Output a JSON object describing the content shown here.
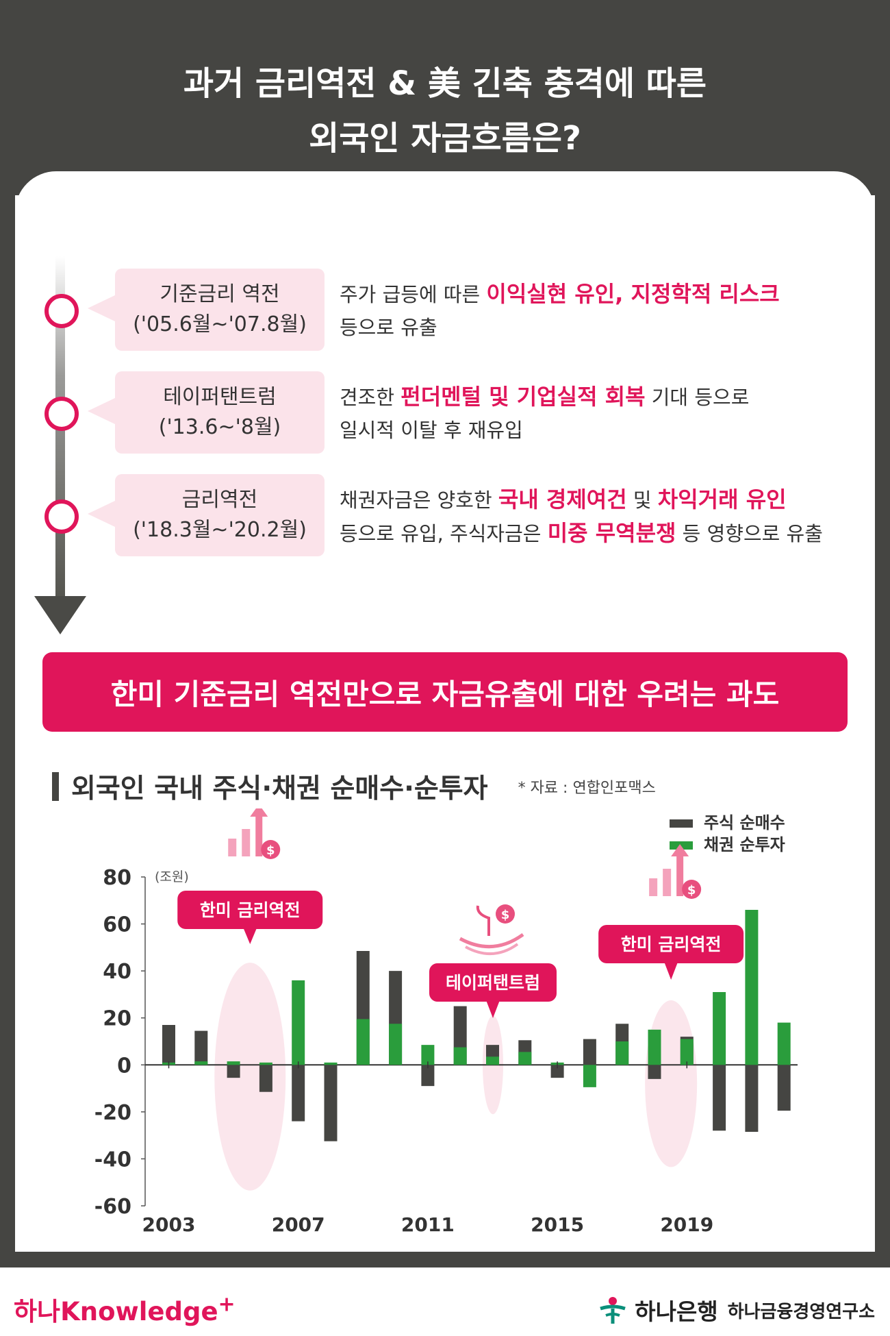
{
  "header": {
    "title_line1": "과거 금리역전 & 美 긴축 충격에 따른",
    "title_line2": "외국인 자금흐름은?"
  },
  "timeline": [
    {
      "period_name": "기준금리 역전",
      "period_range": "('05.6월~'07.8월)",
      "line1": [
        {
          "text": "주가 급등에 따른 ",
          "hl": false
        },
        {
          "text": "이익실현 유인, 지정학적 리스크",
          "hl": true
        }
      ],
      "line2": [
        {
          "text": "등으로 유출",
          "hl": false
        }
      ]
    },
    {
      "period_name": "테이퍼탠트럼",
      "period_range": "('13.6~'8월)",
      "line1": [
        {
          "text": "견조한 ",
          "hl": false
        },
        {
          "text": "펀더멘털 및 기업실적 회복",
          "hl": true
        },
        {
          "text": " 기대 등으로",
          "hl": false
        }
      ],
      "line2": [
        {
          "text": "일시적 이탈 후 재유입",
          "hl": false
        }
      ]
    },
    {
      "period_name": "금리역전",
      "period_range": "('18.3월~'20.2월)",
      "line1": [
        {
          "text": "채권자금은 양호한 ",
          "hl": false
        },
        {
          "text": "국내 경제여건",
          "hl": true
        },
        {
          "text": " 및 ",
          "hl": false
        },
        {
          "text": "차익거래 유인",
          "hl": true
        }
      ],
      "line2": [
        {
          "text": "등으로 유입, 주식자금은 ",
          "hl": false
        },
        {
          "text": "미중 무역분쟁",
          "hl": true
        },
        {
          "text": " 등 영향으로 유출",
          "hl": false
        }
      ]
    }
  ],
  "banner": {
    "text": "한미 기준금리 역전만으로 자금유출에 대한 우려는 과도"
  },
  "chart_section": {
    "title": "외국인 국내 주식·채권 순매수·순투자",
    "source": "* 자료 : 연합인포맥스"
  },
  "chart_data": {
    "type": "bar",
    "x": [
      2003,
      2004,
      2005,
      2006,
      2007,
      2008,
      2009,
      2010,
      2011,
      2012,
      2013,
      2014,
      2015,
      2016,
      2017,
      2018,
      2019,
      2020,
      2021,
      2022
    ],
    "x_tick_labels": [
      "2003",
      "2007",
      "2011",
      "2015",
      "2019"
    ],
    "y_unit_label": "(조원)",
    "ylim": [
      -60,
      80
    ],
    "y_ticks": [
      80,
      60,
      40,
      20,
      0,
      -20,
      -40,
      -60
    ],
    "series": [
      {
        "name": "주식 순매수",
        "color": "#454542",
        "values": [
          17,
          14.5,
          -5.5,
          -11.5,
          -24,
          -32.5,
          48.5,
          40,
          -9,
          25,
          8.5,
          10.5,
          -5.5,
          11,
          17.5,
          -6,
          12,
          -28,
          -28.5,
          -19.5
        ]
      },
      {
        "name": "채권 순투자",
        "color": "#2a9d3c",
        "values": [
          1,
          1.5,
          1.5,
          1,
          36,
          1,
          19.5,
          17.5,
          8.5,
          7.5,
          3.5,
          5.5,
          1,
          -9.5,
          10,
          15,
          11,
          31,
          66,
          18
        ]
      }
    ],
    "legend_position": "top-right",
    "annotations": [
      {
        "label": "한미 금리역전",
        "from_year": 2005,
        "to_year": 2007
      },
      {
        "label": "테이퍼탠트럼",
        "from_year": 2013,
        "to_year": 2013
      },
      {
        "label": "한미 금리역전",
        "from_year": 2018,
        "to_year": 2019
      }
    ],
    "accent_color": "#e0155a",
    "grid": false
  },
  "footer": {
    "knowledge_logo": "하나Knowledge",
    "knowledge_plus": "+",
    "bank_name": "하나은행",
    "institute_name": "하나금융경영연구소"
  }
}
